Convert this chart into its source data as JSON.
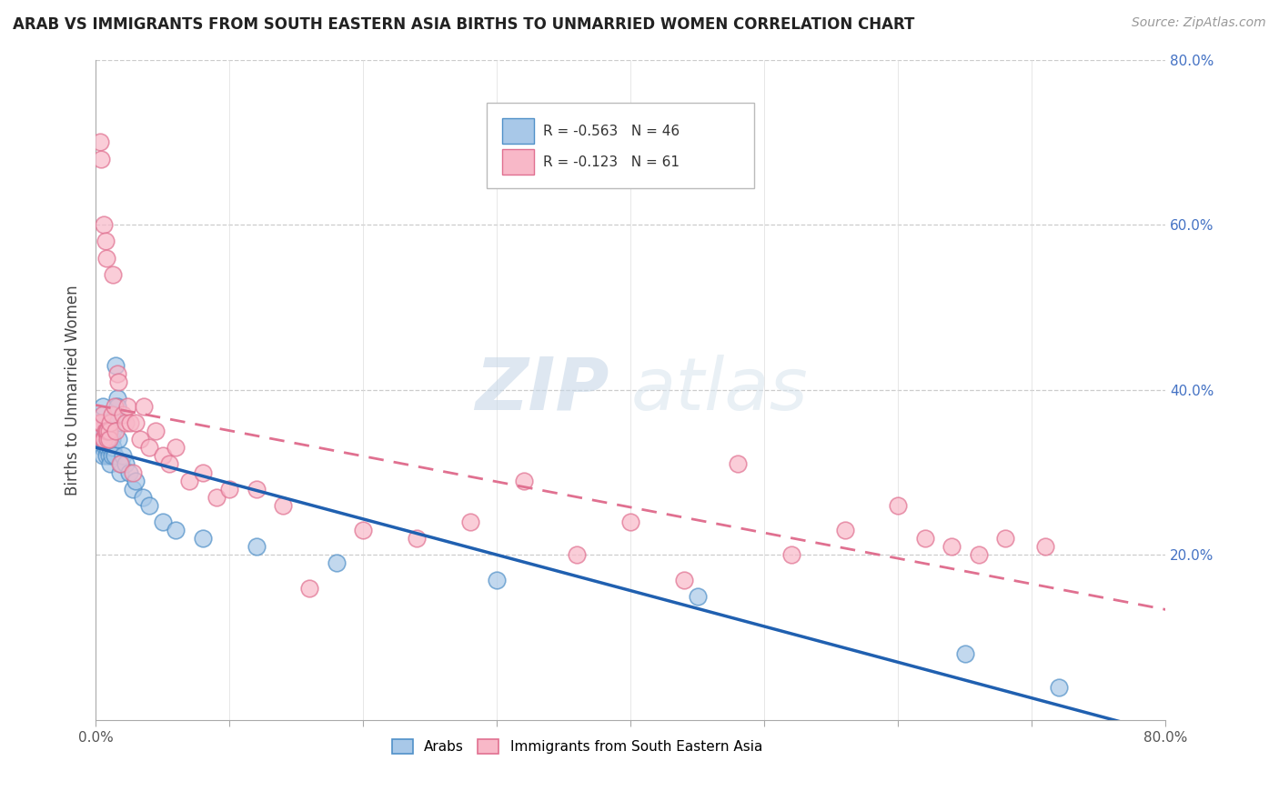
{
  "title": "ARAB VS IMMIGRANTS FROM SOUTH EASTERN ASIA BIRTHS TO UNMARRIED WOMEN CORRELATION CHART",
  "source": "Source: ZipAtlas.com",
  "ylabel": "Births to Unmarried Women",
  "legend_label1": "Arabs",
  "legend_label2": "Immigrants from South Eastern Asia",
  "R1": -0.563,
  "N1": 46,
  "R2": -0.123,
  "N2": 61,
  "xlim": [
    0.0,
    0.8
  ],
  "ylim": [
    0.0,
    0.8
  ],
  "ytick_positions": [
    0.2,
    0.4,
    0.6,
    0.8
  ],
  "ytick_labels": [
    "20.0%",
    "40.0%",
    "60.0%",
    "80.0%"
  ],
  "xtick_positions": [
    0.0,
    0.1,
    0.2,
    0.3,
    0.4,
    0.5,
    0.6,
    0.7,
    0.8
  ],
  "color_arab": "#a8c8e8",
  "color_arab_edge": "#5090c8",
  "color_immigrant": "#f8b8c8",
  "color_immigrant_edge": "#e07090",
  "color_line_arab": "#2060b0",
  "color_line_immigrant": "#e07090",
  "watermark_zip": "ZIP",
  "watermark_atlas": "atlas",
  "arab_x": [
    0.002,
    0.003,
    0.004,
    0.005,
    0.005,
    0.005,
    0.006,
    0.006,
    0.007,
    0.007,
    0.008,
    0.008,
    0.009,
    0.009,
    0.01,
    0.01,
    0.011,
    0.011,
    0.012,
    0.012,
    0.013,
    0.013,
    0.014,
    0.015,
    0.015,
    0.016,
    0.016,
    0.017,
    0.018,
    0.019,
    0.02,
    0.022,
    0.025,
    0.028,
    0.03,
    0.035,
    0.04,
    0.05,
    0.06,
    0.08,
    0.12,
    0.18,
    0.3,
    0.45,
    0.65,
    0.72
  ],
  "arab_y": [
    0.36,
    0.34,
    0.35,
    0.38,
    0.33,
    0.32,
    0.35,
    0.34,
    0.36,
    0.33,
    0.34,
    0.32,
    0.35,
    0.33,
    0.32,
    0.34,
    0.33,
    0.31,
    0.34,
    0.32,
    0.33,
    0.35,
    0.32,
    0.43,
    0.37,
    0.39,
    0.38,
    0.34,
    0.3,
    0.31,
    0.32,
    0.31,
    0.3,
    0.28,
    0.29,
    0.27,
    0.26,
    0.24,
    0.23,
    0.22,
    0.21,
    0.19,
    0.17,
    0.15,
    0.08,
    0.04
  ],
  "immigrant_x": [
    0.002,
    0.003,
    0.003,
    0.004,
    0.004,
    0.005,
    0.005,
    0.006,
    0.006,
    0.007,
    0.007,
    0.008,
    0.008,
    0.009,
    0.009,
    0.01,
    0.01,
    0.011,
    0.012,
    0.013,
    0.014,
    0.015,
    0.016,
    0.017,
    0.018,
    0.02,
    0.022,
    0.024,
    0.026,
    0.028,
    0.03,
    0.033,
    0.036,
    0.04,
    0.045,
    0.05,
    0.055,
    0.06,
    0.07,
    0.08,
    0.09,
    0.1,
    0.12,
    0.14,
    0.16,
    0.2,
    0.24,
    0.28,
    0.32,
    0.36,
    0.4,
    0.44,
    0.48,
    0.52,
    0.56,
    0.6,
    0.62,
    0.64,
    0.66,
    0.68,
    0.71
  ],
  "immigrant_y": [
    0.35,
    0.36,
    0.7,
    0.36,
    0.68,
    0.37,
    0.34,
    0.6,
    0.34,
    0.58,
    0.35,
    0.35,
    0.56,
    0.34,
    0.35,
    0.35,
    0.34,
    0.36,
    0.37,
    0.54,
    0.38,
    0.35,
    0.42,
    0.41,
    0.31,
    0.37,
    0.36,
    0.38,
    0.36,
    0.3,
    0.36,
    0.34,
    0.38,
    0.33,
    0.35,
    0.32,
    0.31,
    0.33,
    0.29,
    0.3,
    0.27,
    0.28,
    0.28,
    0.26,
    0.16,
    0.23,
    0.22,
    0.24,
    0.29,
    0.2,
    0.24,
    0.17,
    0.31,
    0.2,
    0.23,
    0.26,
    0.22,
    0.21,
    0.2,
    0.22,
    0.21
  ]
}
